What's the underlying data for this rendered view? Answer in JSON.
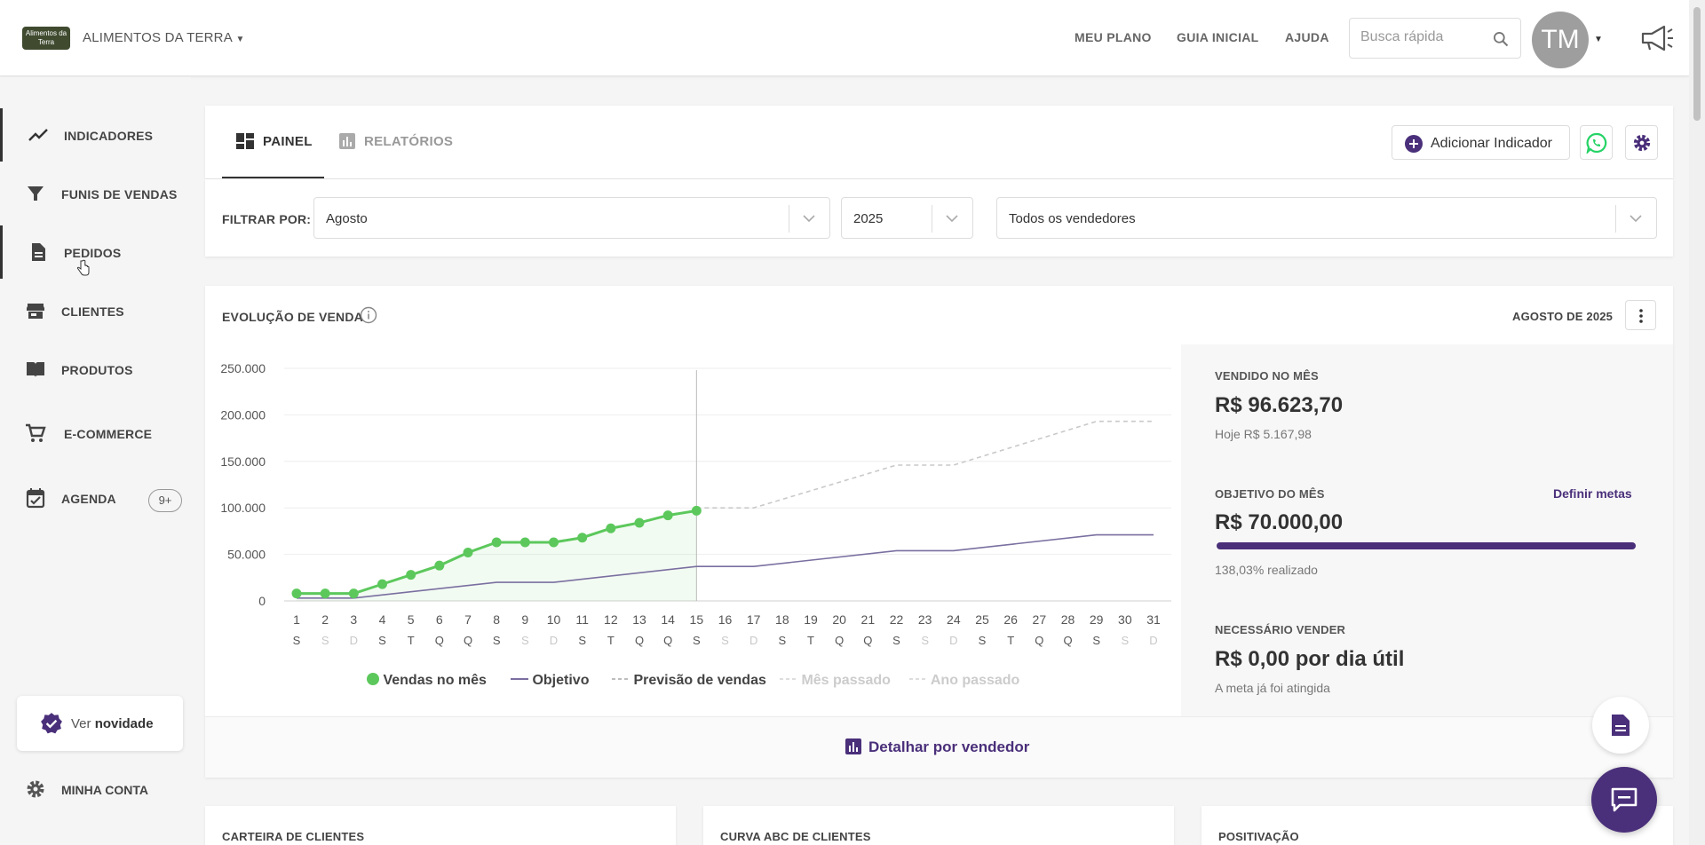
{
  "header": {
    "logo_text_1": "Alimentos da",
    "logo_text_2": "Terra",
    "company": "ALIMENTOS DA TERRA",
    "nav": [
      "MEU PLANO",
      "GUIA INICIAL",
      "AJUDA"
    ],
    "search_placeholder": "Busca rápida",
    "avatar_initials": "TM"
  },
  "sidebar": {
    "items": [
      {
        "label": "INDICADORES",
        "icon": "trending-up-icon"
      },
      {
        "label": "FUNIS DE VENDAS",
        "icon": "filter-icon"
      },
      {
        "label": "PEDIDOS",
        "icon": "document-icon"
      },
      {
        "label": "CLIENTES",
        "icon": "store-icon"
      },
      {
        "label": "PRODUTOS",
        "icon": "book-icon"
      },
      {
        "label": "E-COMMERCE",
        "icon": "cart-icon"
      },
      {
        "label": "AGENDA",
        "icon": "calendar-check-icon",
        "badge": "9+"
      }
    ],
    "novidade_pre": "Ver ",
    "novidade_bold": "novidade",
    "account": "MINHA CONTA"
  },
  "tabs": {
    "painel": "PAINEL",
    "relatorios": "RELATÓRIOS"
  },
  "toolbar": {
    "add_indicator": "Adicionar Indicador"
  },
  "filters": {
    "label": "FILTRAR POR:",
    "month": "Agosto",
    "year": "2025",
    "seller": "Todos os vendedores"
  },
  "panel": {
    "title": "EVOLUÇÃO DE VENDA",
    "period": "AGOSTO DE 2025",
    "detail_button": "Detalhar por vendedor"
  },
  "kpis": {
    "sold_label": "VENDIDO NO MÊS",
    "sold_value": "R$ 96.623,70",
    "sold_today": "Hoje R$ 5.167,98",
    "goal_label": "OBJETIVO DO MÊS",
    "goal_link": "Definir metas",
    "goal_value": "R$ 70.000,00",
    "goal_progress": 1.0,
    "goal_done": "138,03% realizado",
    "need_label": "NECESSÁRIO VENDER",
    "need_value": "R$ 0,00 por dia útil",
    "need_sub": "A meta já foi atingida"
  },
  "bottom_cards": [
    "CARTEIRA DE CLIENTES",
    "CURVA ABC DE CLIENTES",
    "POSITIVAÇÃO"
  ],
  "colors": {
    "accent": "#4a2f7a",
    "sales": "#5cc85c",
    "goal": "#7a6fa0",
    "whatsapp": "#25d366"
  },
  "chart_data": {
    "type": "line",
    "x": [
      1,
      2,
      3,
      4,
      5,
      6,
      7,
      8,
      9,
      10,
      11,
      12,
      13,
      14,
      15,
      16,
      17,
      18,
      19,
      20,
      21,
      22,
      23,
      24,
      25,
      26,
      27,
      28,
      29,
      30,
      31
    ],
    "weekday": [
      "S",
      "S",
      "D",
      "S",
      "T",
      "Q",
      "Q",
      "S",
      "S",
      "D",
      "S",
      "T",
      "Q",
      "Q",
      "S",
      "S",
      "D",
      "S",
      "T",
      "Q",
      "Q",
      "S",
      "S",
      "D",
      "S",
      "T",
      "Q",
      "Q",
      "S",
      "S",
      "D"
    ],
    "weekday_dim": [
      false,
      true,
      true,
      false,
      false,
      false,
      false,
      false,
      true,
      true,
      false,
      false,
      false,
      false,
      false,
      true,
      true,
      false,
      false,
      false,
      false,
      false,
      true,
      true,
      false,
      false,
      false,
      false,
      false,
      true,
      true
    ],
    "y_ticks": [
      "250.000",
      "200.000",
      "150.000",
      "100.000",
      "50.000",
      "0"
    ],
    "ylim": [
      0,
      250000
    ],
    "today": 15,
    "series": [
      {
        "name": "Vendas no mês",
        "style": "line-dots",
        "x": [
          1,
          2,
          3,
          4,
          5,
          6,
          7,
          8,
          9,
          10,
          11,
          12,
          13,
          14,
          15
        ],
        "values": [
          8000,
          8000,
          8000,
          18000,
          28000,
          38000,
          52000,
          63000,
          63000,
          63000,
          68000,
          78000,
          84000,
          92000,
          97000
        ]
      },
      {
        "name": "Objetivo",
        "style": "line",
        "x": [
          1,
          3,
          8,
          10,
          15,
          17,
          22,
          24,
          29,
          31
        ],
        "values": [
          3000,
          3000,
          20000,
          20000,
          37000,
          37000,
          54000,
          54000,
          71000,
          71000
        ]
      },
      {
        "name": "Previsão de vendas",
        "style": "dashed",
        "x": [
          15,
          17,
          22,
          24,
          29,
          31
        ],
        "values": [
          100000,
          100000,
          146000,
          146000,
          193000,
          193000
        ]
      },
      {
        "name": "Mês passado",
        "style": "dashed-faint",
        "x": [],
        "values": []
      },
      {
        "name": "Ano passado",
        "style": "dashed-faint",
        "x": [],
        "values": []
      }
    ]
  }
}
